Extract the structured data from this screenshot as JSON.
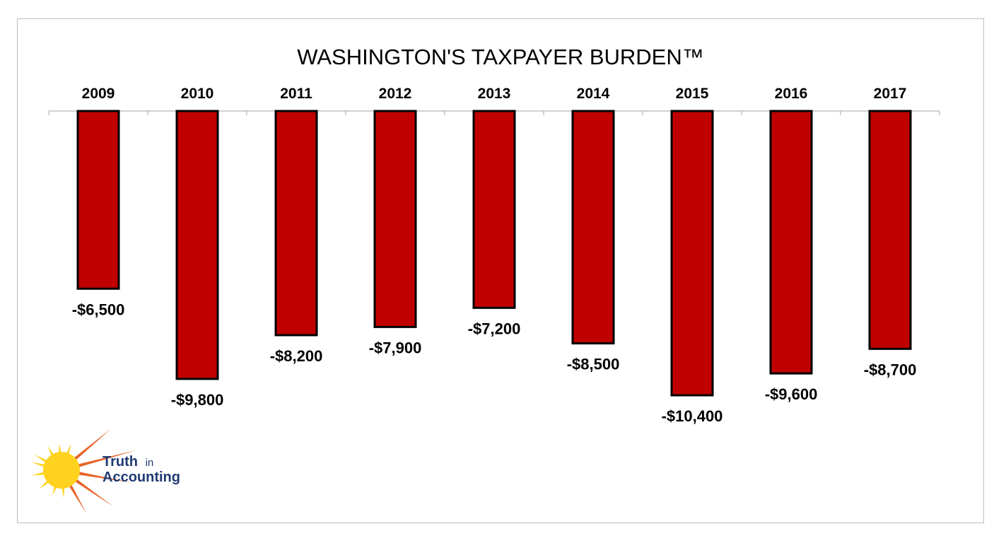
{
  "chart_data": {
    "type": "bar",
    "title": "WASHINGTON'S TAXPAYER BURDEN™",
    "categories": [
      "2009",
      "2010",
      "2011",
      "2012",
      "2013",
      "2014",
      "2015",
      "2016",
      "2017"
    ],
    "values": [
      -6500,
      -9800,
      -8200,
      -7900,
      -7200,
      -8500,
      -10400,
      -9600,
      -8700
    ],
    "data_labels": [
      "-$6,500",
      "-$9,800",
      "-$8,200",
      "-$7,900",
      "-$7,200",
      "-$8,500",
      "-$10,400",
      "-$9,600",
      "-$8,700"
    ],
    "xlabel": "",
    "ylabel": "",
    "ylim": [
      -12000,
      0
    ],
    "x_axis_position": "top",
    "grid": false,
    "legend": "none",
    "bar_color": "#c00000",
    "bar_edge_color": "#000000"
  },
  "logo": {
    "line1": "Truth",
    "line1_small": "in",
    "line2": "Accounting",
    "text_color": "#1f3a73",
    "sun_color": "#ffd21f",
    "ray_color": "#e8642a"
  }
}
